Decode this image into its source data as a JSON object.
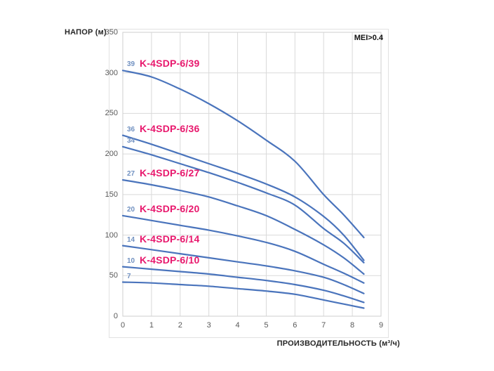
{
  "page": {
    "y_axis_title": "НАПОР (м)",
    "x_axis_title": "ПРОИЗВОДИТЕЛЬНОСТЬ (м³/ч)",
    "annotation": "MEI>0.4"
  },
  "colors": {
    "curve": "#4a74bc",
    "series_label": "#e8186d",
    "stage_number": "#7191c1",
    "grid": "#d9d9d9",
    "plot_border": "#cfcfcf",
    "tick_text": "#595959",
    "axis_title_text": "#262626"
  },
  "chart_data": {
    "type": "line",
    "title": "",
    "xlabel": "ПРОИЗВОДИТЕЛЬНОСТЬ (м³/ч)",
    "ylabel": "НАПОР (м)",
    "annotation": "MEI>0.4",
    "xlim": [
      0,
      9
    ],
    "ylim": [
      0,
      350
    ],
    "x_ticks": [
      0,
      1,
      2,
      3,
      4,
      5,
      6,
      7,
      8,
      9
    ],
    "y_ticks": [
      0,
      50,
      100,
      150,
      200,
      250,
      300,
      350
    ],
    "grid": true,
    "legend_position": "inline-left",
    "x": [
      0,
      1,
      2,
      3,
      4,
      5,
      6,
      7,
      7.7,
      8.4
    ],
    "series": [
      {
        "name": "K-4SDP-6/39",
        "stages": "39",
        "values": [
          303,
          295,
          280,
          262,
          241,
          217,
          191,
          150,
          125,
          97
        ]
      },
      {
        "name": "K-4SDP-6/36",
        "stages": "36",
        "values": [
          223,
          212,
          200,
          188,
          176,
          163,
          147,
          123,
          100,
          69
        ]
      },
      {
        "name": "",
        "stages": "34",
        "values": [
          209,
          199,
          188,
          177,
          165,
          152,
          137,
          108,
          90,
          66
        ]
      },
      {
        "name": "K-4SDP-6/27",
        "stages": "27",
        "values": [
          168,
          162,
          155,
          147,
          136,
          124,
          107,
          88,
          72,
          52
        ]
      },
      {
        "name": "K-4SDP-6/20",
        "stages": "20",
        "values": [
          124,
          118,
          112,
          106,
          99,
          91,
          80,
          64,
          53,
          41
        ]
      },
      {
        "name": "K-4SDP-6/14",
        "stages": "14",
        "values": [
          87,
          82,
          77,
          72,
          67,
          62,
          56,
          48,
          39,
          28
        ]
      },
      {
        "name": "K-4SDP-6/10",
        "stages": "10",
        "values": [
          61,
          58,
          55,
          52,
          48,
          44,
          39,
          32,
          25,
          17
        ]
      },
      {
        "name": "",
        "stages": "7",
        "values": [
          42,
          41,
          39,
          37,
          34,
          31,
          27,
          20,
          15,
          10
        ]
      }
    ]
  }
}
